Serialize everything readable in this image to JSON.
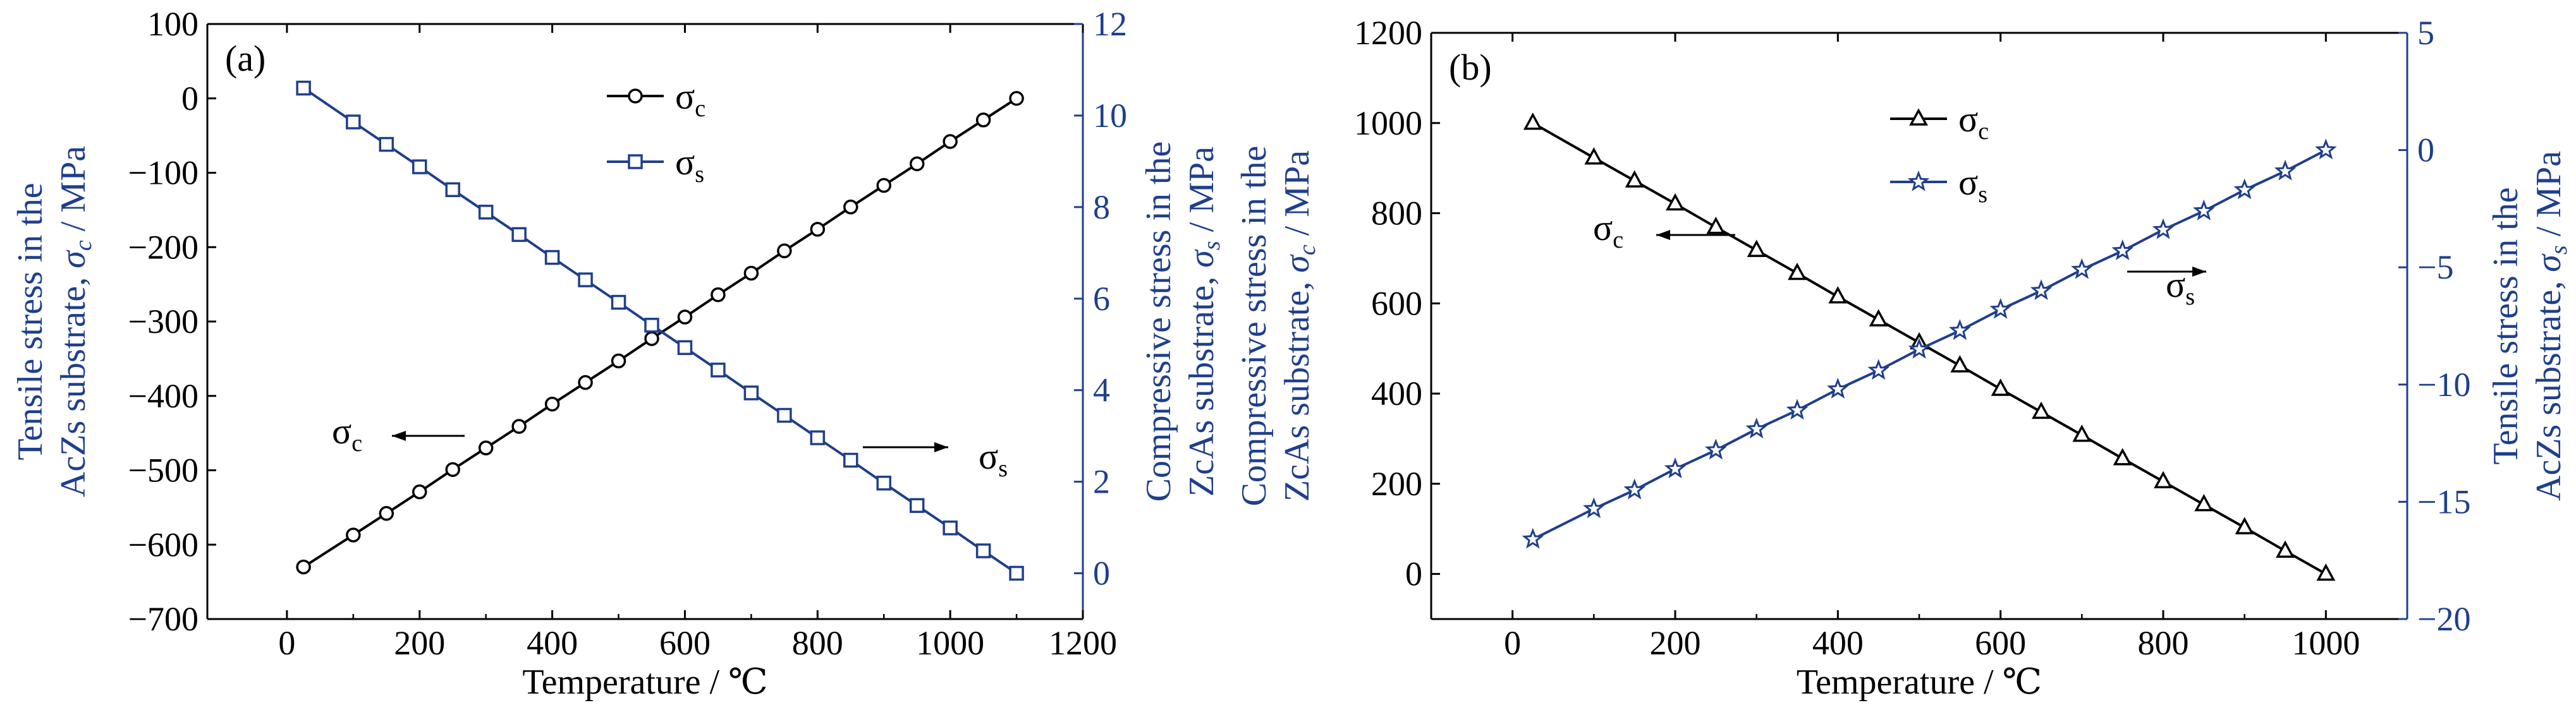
{
  "colors": {
    "black": "#000000",
    "blue": "#1f3f8c"
  },
  "chart_data": [
    {
      "type": "line",
      "panel_label": "(a)",
      "xlabel": "Temperature / ℃",
      "xlim": [
        -120,
        1200
      ],
      "xticks": [
        0,
        200,
        400,
        600,
        800,
        1000,
        1200
      ],
      "ylabel_left_line1": "Tensile stress in the",
      "ylabel_left_line2_prefix": "AcZs substrate, ",
      "ylabel_left_symbol": "σ",
      "ylabel_left_symbol_sub": "c",
      "ylabel_left_unit": " / MPa",
      "ylim_left": [
        -700,
        100
      ],
      "yticks_left": [
        -700,
        -600,
        -500,
        -400,
        -300,
        -200,
        -100,
        0,
        100
      ],
      "ylabel_right_line1": "Compressive stress in the",
      "ylabel_right_line2_prefix": "ZcAs substrate, ",
      "ylabel_right_symbol": "σ",
      "ylabel_right_symbol_sub": "s",
      "ylabel_right_unit": " / MPa",
      "ylim_right": [
        -1,
        12
      ],
      "yticks_right": [
        0,
        2,
        4,
        6,
        8,
        10,
        12
      ],
      "legend_position": "top-center",
      "series": [
        {
          "name": "σ",
          "name_sub": "c",
          "axis": "left",
          "marker": "circle",
          "color": "#000000",
          "x": [
            25,
            100,
            150,
            200,
            250,
            300,
            350,
            400,
            450,
            500,
            550,
            600,
            650,
            700,
            750,
            800,
            850,
            900,
            950,
            1000,
            1050,
            1100
          ],
          "values": [
            -630,
            -587,
            -558,
            -529,
            -499,
            -470,
            -441,
            -411,
            -382,
            -353,
            -323,
            -294,
            -264,
            -235,
            -205,
            -176,
            -146,
            -117,
            -88,
            -58,
            -29,
            0
          ]
        },
        {
          "name": "σ",
          "name_sub": "s",
          "axis": "right",
          "marker": "square",
          "color": "#1f3f8c",
          "x": [
            25,
            100,
            150,
            200,
            250,
            300,
            350,
            400,
            450,
            500,
            550,
            600,
            650,
            700,
            750,
            800,
            850,
            900,
            950,
            1000,
            1050,
            1100
          ],
          "values": [
            10.6,
            9.86,
            9.37,
            8.88,
            8.38,
            7.89,
            7.4,
            6.9,
            6.41,
            5.92,
            5.42,
            4.93,
            4.44,
            3.94,
            3.45,
            2.96,
            2.47,
            1.97,
            1.48,
            0.99,
            0.49,
            0
          ]
        }
      ],
      "annotations": [
        {
          "symbol": "σ",
          "sub": "c",
          "arrow": "left",
          "series": "σc"
        },
        {
          "symbol": "σ",
          "sub": "s",
          "arrow": "right",
          "series": "σs"
        }
      ]
    },
    {
      "type": "line",
      "panel_label": "(b)",
      "xlabel": "Temperature / ℃",
      "xlim": [
        -100,
        1100
      ],
      "xticks": [
        0,
        200,
        400,
        600,
        800,
        1000
      ],
      "ylabel_left_line1": "Compressive stress in the",
      "ylabel_left_line2_prefix": "ZcAs substrate, ",
      "ylabel_left_symbol": "σ",
      "ylabel_left_symbol_sub": "c",
      "ylabel_left_unit": " / MPa",
      "ylim_left": [
        -100,
        1200
      ],
      "yticks_left": [
        0,
        200,
        400,
        600,
        800,
        1000,
        1200
      ],
      "ylabel_right_line1": "Tensile stress in the",
      "ylabel_right_line2_prefix": "AcZs substrate, ",
      "ylabel_right_symbol": "σ",
      "ylabel_right_symbol_sub": "s",
      "ylabel_right_unit": " / MPa",
      "ylim_right": [
        -20,
        5
      ],
      "yticks_right": [
        -20,
        -15,
        -10,
        -5,
        0,
        5
      ],
      "legend_position": "top-center",
      "series": [
        {
          "name": "σ",
          "name_sub": "c",
          "axis": "left",
          "marker": "triangle",
          "color": "#000000",
          "x": [
            25,
            100,
            150,
            200,
            250,
            300,
            350,
            400,
            450,
            500,
            550,
            600,
            650,
            700,
            750,
            800,
            850,
            900,
            950,
            1000
          ],
          "values": [
            1000,
            923,
            872,
            821,
            769,
            718,
            667,
            615,
            564,
            513,
            462,
            410,
            359,
            308,
            256,
            205,
            154,
            103,
            51,
            0
          ]
        },
        {
          "name": "σ",
          "name_sub": "s",
          "axis": "right",
          "marker": "star",
          "color": "#1f3f8c",
          "x": [
            25,
            100,
            150,
            200,
            250,
            300,
            350,
            400,
            450,
            500,
            550,
            600,
            650,
            700,
            750,
            800,
            850,
            900,
            950,
            1000
          ],
          "values": [
            -16.6,
            -15.3,
            -14.5,
            -13.6,
            -12.8,
            -11.9,
            -11.1,
            -10.2,
            -9.4,
            -8.5,
            -7.7,
            -6.8,
            -6.0,
            -5.1,
            -4.3,
            -3.4,
            -2.6,
            -1.7,
            -0.9,
            0
          ]
        }
      ],
      "annotations": [
        {
          "symbol": "σ",
          "sub": "c",
          "arrow": "left",
          "series": "σc"
        },
        {
          "symbol": "σ",
          "sub": "s",
          "arrow": "right",
          "series": "σs"
        }
      ]
    }
  ]
}
